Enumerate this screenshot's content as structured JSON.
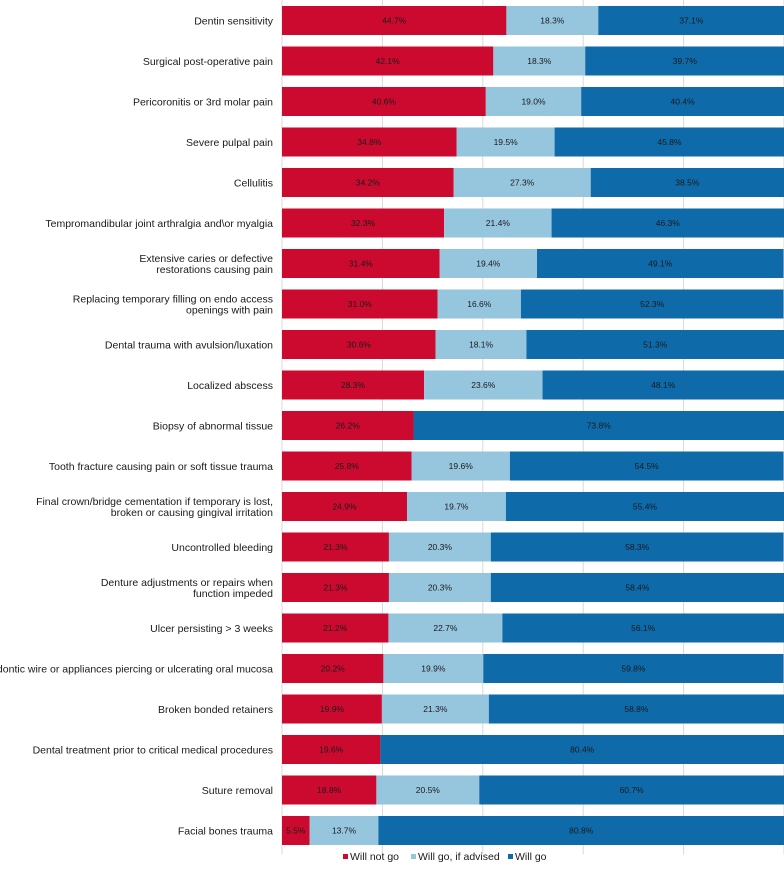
{
  "chart_data": {
    "type": "bar",
    "orientation": "horizontal",
    "stacked": true,
    "xlim": [
      0,
      100
    ],
    "grid": true,
    "legend_position": "bottom-center",
    "categories": [
      "Dentin sensitivity",
      "Surgical post-operative pain",
      "Pericoronitis or 3rd molar pain",
      "Severe pulpal pain",
      "Cellulitis",
      "Tempromandibular joint arthralgia and\\or myalgia",
      "Extensive caries or defective restorations causing pain",
      "Replacing temporary filling on endo access openings with pain",
      "Dental trauma with avulsion/luxation",
      "Localized abscess",
      "Biopsy of abnormal tissue",
      "Tooth fracture causing pain or soft tissue trauma",
      "Final crown/bridge cementation if temporary is lost, broken or causing gingival irritation",
      "Uncontrolled bleeding",
      "Denture adjustments or repairs when function impeded",
      "Ulcer persisting > 3 weeks",
      "Orthodontic wire or appliances piercing or ulcerating oral mucosa",
      "Broken bonded retainers",
      "Dental treatment prior to critical medical procedures",
      "Suture removal",
      "Facial bones trauma"
    ],
    "category_lines": [
      [
        "Dentin sensitivity"
      ],
      [
        "Surgical post-operative pain"
      ],
      [
        "Pericoronitis or 3rd molar pain"
      ],
      [
        "Severe pulpal pain"
      ],
      [
        "Cellulitis"
      ],
      [
        "Tempromandibular joint arthralgia and\\or myalgia"
      ],
      [
        "Extensive caries or defective",
        "restorations causing pain"
      ],
      [
        "Replacing temporary filling on endo access",
        "openings with pain"
      ],
      [
        "Dental trauma with avulsion/luxation"
      ],
      [
        "Localized abscess"
      ],
      [
        "Biopsy of abnormal tissue"
      ],
      [
        "Tooth fracture causing pain or soft tissue trauma"
      ],
      [
        "Final crown/bridge cementation if temporary is lost,",
        "broken or causing gingival irritation"
      ],
      [
        "Uncontrolled bleeding"
      ],
      [
        "Denture adjustments or repairs when",
        "function impeded"
      ],
      [
        "Ulcer persisting > 3 weeks"
      ],
      [
        "Orthodontic wire or appliances piercing or ulcerating oral mucosa"
      ],
      [
        "Broken bonded retainers"
      ],
      [
        "Dental treatment prior to critical medical procedures"
      ],
      [
        "Suture removal"
      ],
      [
        "Facial bones trauma"
      ]
    ],
    "series": [
      {
        "name": "Will not go",
        "color": "#cc0a2f",
        "values": [
          44.7,
          42.1,
          40.6,
          34.8,
          34.2,
          32.3,
          31.4,
          31.0,
          30.6,
          28.3,
          26.2,
          25.8,
          24.9,
          21.3,
          21.3,
          21.2,
          20.2,
          19.9,
          19.6,
          18.8,
          5.5
        ],
        "labels": [
          "44.7%",
          "42.1%",
          "40.6%",
          "34.8%",
          "34.2%",
          "32.3%",
          "31.4%",
          "31.0%",
          "30.6%",
          "28.3%",
          "26.2%",
          "25.8%",
          "24.9%",
          "21.3%",
          "21.3%",
          "21.2%",
          "20.2%",
          "19.9%",
          "19.6%",
          "18.8%",
          "5.5%"
        ]
      },
      {
        "name": "Will go, if advised",
        "color": "#96c5de",
        "values": [
          18.3,
          18.3,
          19.0,
          19.5,
          27.3,
          21.4,
          19.4,
          16.6,
          18.1,
          23.6,
          0,
          19.6,
          19.7,
          20.3,
          20.3,
          22.7,
          19.9,
          21.3,
          0,
          20.5,
          13.7
        ],
        "labels": [
          "18.3%",
          "18.3%",
          "19.0%",
          "19.5%",
          "27.3%",
          "21.4%",
          "19.4%",
          "16.6%",
          "18.1%",
          "23.6%",
          "",
          "19.6%",
          "19.7%",
          "20.3%",
          "20.3%",
          "22.7%",
          "19.9%",
          "21.3%",
          "",
          "20.5%",
          "13.7%"
        ]
      },
      {
        "name": "Will go",
        "color": "#0f6aaa",
        "values": [
          37.1,
          39.7,
          40.4,
          45.8,
          38.5,
          46.3,
          49.1,
          52.3,
          51.3,
          48.1,
          73.8,
          54.5,
          55.4,
          58.3,
          58.4,
          56.1,
          59.8,
          58.8,
          80.4,
          60.7,
          80.8
        ],
        "labels": [
          "37.1%",
          "39.7%",
          "40.4%",
          "45.8%",
          "38.5%",
          "46.3%",
          "49.1%",
          "52.3%",
          "51.3%",
          "48.1%",
          "73.8%",
          "54.5%",
          "55.4%",
          "58.3%",
          "58.4%",
          "56.1%",
          "59.8%",
          "58.8%",
          "80.4%",
          "60.7%",
          "80.8%"
        ]
      }
    ]
  }
}
